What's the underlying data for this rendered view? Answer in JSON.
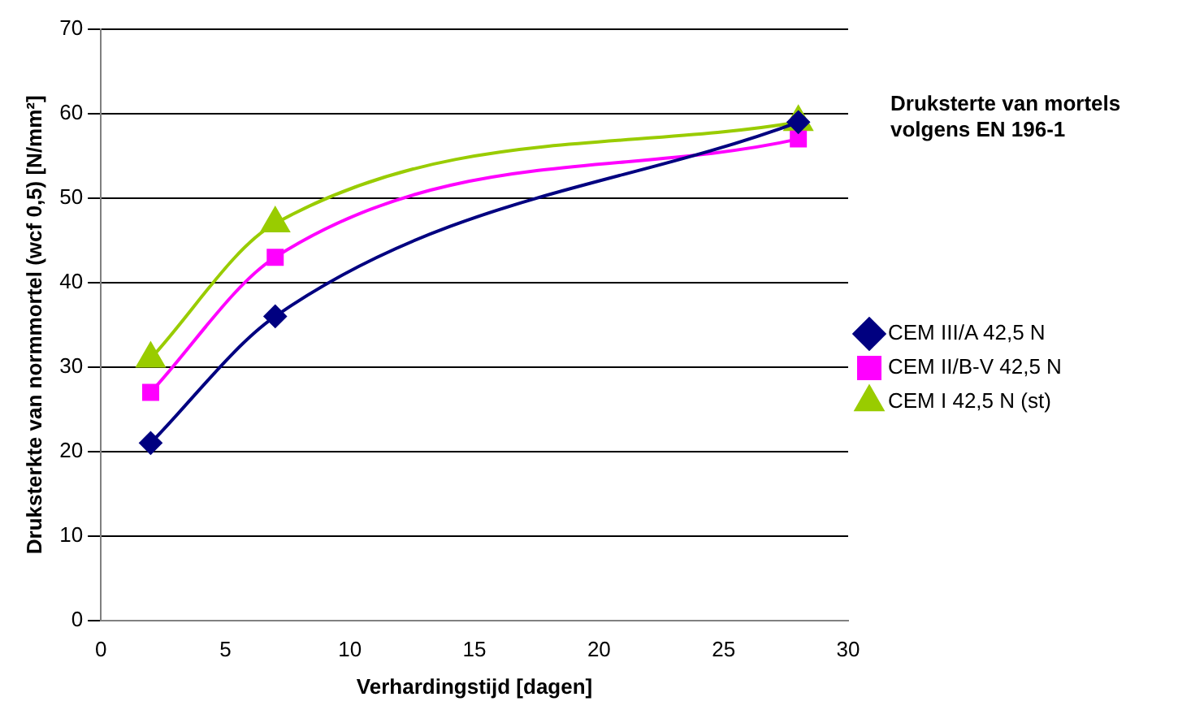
{
  "chart_data": {
    "type": "line",
    "title": "Druksterte van mortels volgens EN 196-1",
    "xlabel": "Verhardingstijd [dagen]",
    "ylabel": "Druksterkte van normmortel (wcf 0,5) [N/mm²]",
    "x": [
      2,
      7,
      28
    ],
    "series": [
      {
        "name": "CEM III/A 42,5 N",
        "color": "#000080",
        "marker": "diamond",
        "values": [
          21,
          36,
          59
        ]
      },
      {
        "name": "CEM II/B-V 42,5 N",
        "color": "#ff00ff",
        "marker": "square",
        "values": [
          27,
          43,
          57
        ]
      },
      {
        "name": "CEM I 42,5 N (st)",
        "color": "#99cc00",
        "marker": "triangle",
        "values": [
          31,
          47,
          59
        ]
      }
    ],
    "xlim": [
      0,
      30
    ],
    "xticks": [
      0,
      5,
      10,
      15,
      20,
      25,
      30
    ],
    "ylim": [
      0,
      70
    ],
    "yticks": [
      0,
      10,
      20,
      30,
      40,
      50,
      60,
      70
    ],
    "grid": "y",
    "legend": "right",
    "line_style": "solid"
  }
}
